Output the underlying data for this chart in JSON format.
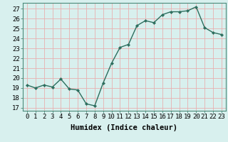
{
  "x": [
    0,
    1,
    2,
    3,
    4,
    5,
    6,
    7,
    8,
    9,
    10,
    11,
    12,
    13,
    14,
    15,
    16,
    17,
    18,
    19,
    20,
    21,
    22,
    23
  ],
  "y": [
    19.3,
    19.0,
    19.3,
    19.1,
    19.9,
    18.9,
    18.8,
    17.4,
    17.2,
    19.5,
    21.5,
    23.1,
    23.4,
    25.3,
    25.8,
    25.6,
    26.4,
    26.7,
    26.7,
    26.8,
    27.2,
    25.1,
    24.6,
    24.4
  ],
  "line_color": "#2d6e5e",
  "marker": "D",
  "marker_size": 2.2,
  "line_width": 1.0,
  "bg_color": "#d8f0ee",
  "grid_color": "#e8b0b0",
  "xlabel": "Humidex (Indice chaleur)",
  "xlabel_fontsize": 7.5,
  "ylabel_ticks": [
    17,
    18,
    19,
    20,
    21,
    22,
    23,
    24,
    25,
    26,
    27
  ],
  "ylim": [
    16.7,
    27.6
  ],
  "xlim": [
    -0.5,
    23.5
  ],
  "tick_fontsize": 6.5,
  "xlabel_style": "bold"
}
